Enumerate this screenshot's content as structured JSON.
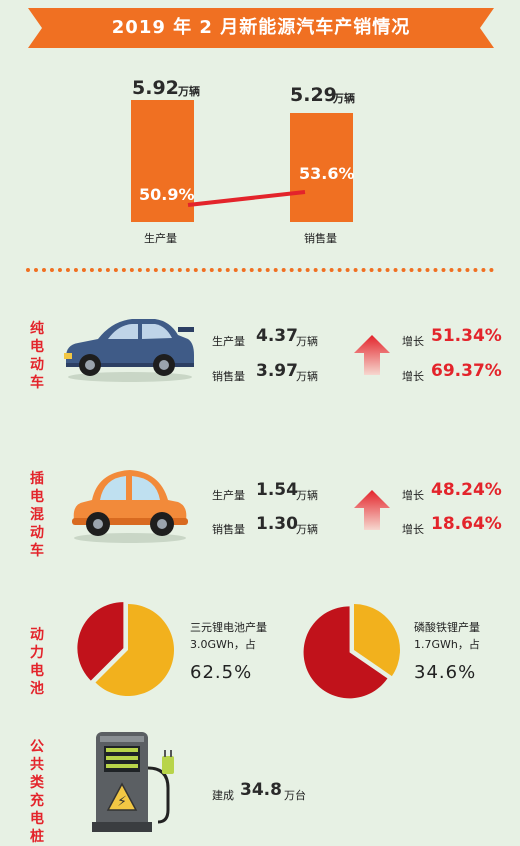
{
  "title": "2019 年 2 月新能源汽车产销情况",
  "colors": {
    "orange": "#f07022",
    "red": "#e3242b",
    "dark_red": "#c1121b",
    "yellow": "#f2b11d",
    "bg": "#e7f1e4"
  },
  "chart_data": [
    {
      "type": "bar",
      "categories": [
        "生产量",
        "销售量"
      ],
      "values": [
        5.92,
        5.29
      ],
      "value_labels": [
        "5.92",
        "5.29"
      ],
      "unit": "万辆",
      "growth_labels": [
        "50.9%",
        "53.6%"
      ],
      "growth": [
        50.9,
        53.6
      ]
    },
    {
      "type": "pie",
      "label": "三元锂电池产量",
      "line1": "三元锂电池产量",
      "line2": "3.0GWh，占",
      "percent_label": "62.5%",
      "share": 62.5
    },
    {
      "type": "pie",
      "label": "磷酸铁锂产量",
      "line1": "磷酸铁锂产量",
      "line2": "1.7GWh，占",
      "percent_label": "34.6%",
      "share": 34.6
    }
  ],
  "sections": {
    "bev": {
      "label": "纯电动车",
      "prod_label": "生产量",
      "prod_value": "4.37",
      "prod_unit": "万辆",
      "sales_label": "销售量",
      "sales_value": "3.97",
      "sales_unit": "万辆",
      "growth1_label": "增长",
      "growth1": "51.34%",
      "growth2_label": "增长",
      "growth2": "69.37%"
    },
    "phev": {
      "label": "插电混动车",
      "prod_label": "生产量",
      "prod_value": "1.54",
      "prod_unit": "万辆",
      "sales_label": "销售量",
      "sales_value": "1.30",
      "sales_unit": "万辆",
      "growth1_label": "增长",
      "growth1": "48.24%",
      "growth2_label": "增长",
      "growth2": "18.64%"
    },
    "battery": {
      "label": "动力电池"
    },
    "charging": {
      "label": "公共类充电桩",
      "prefix": "建成",
      "value": "34.8",
      "unit": "万台"
    }
  }
}
